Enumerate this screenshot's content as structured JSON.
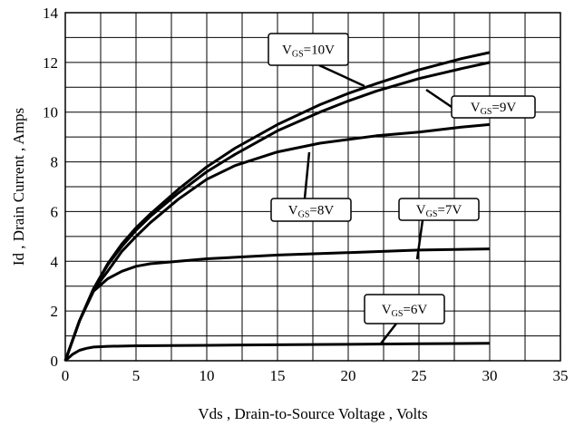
{
  "chart_data": {
    "type": "line",
    "xlabel": "Vds , Drain-to-Source Voltage , Volts",
    "ylabel": "Id , Drain Current , Amps",
    "xlim": [
      0,
      35
    ],
    "ylim": [
      0,
      14
    ],
    "xticks": [
      0,
      5,
      10,
      15,
      20,
      25,
      30,
      35
    ],
    "yticks": [
      0,
      2,
      4,
      6,
      8,
      10,
      12,
      14
    ],
    "grid": true,
    "series": [
      {
        "name": "VGS=10V",
        "label_main": "V",
        "label_sub": "GS",
        "label_rest": "=10V",
        "x": [
          0,
          1,
          2,
          3,
          4,
          5,
          6,
          8,
          10,
          12,
          15,
          18,
          20,
          22,
          25,
          28,
          30
        ],
        "y": [
          0,
          1.6,
          2.9,
          3.9,
          4.7,
          5.35,
          5.9,
          6.9,
          7.8,
          8.55,
          9.5,
          10.3,
          10.75,
          11.15,
          11.7,
          12.15,
          12.4
        ]
      },
      {
        "name": "VGS=9V",
        "label_main": "V",
        "label_sub": "GS",
        "label_rest": "=9V",
        "x": [
          0,
          1,
          2,
          3,
          4,
          5,
          6,
          8,
          10,
          12,
          15,
          18,
          20,
          22,
          25,
          28,
          30
        ],
        "y": [
          0,
          1.6,
          2.9,
          3.85,
          4.6,
          5.25,
          5.8,
          6.75,
          7.6,
          8.3,
          9.25,
          10.0,
          10.45,
          10.85,
          11.35,
          11.75,
          12.0
        ]
      },
      {
        "name": "VGS=8V",
        "label_main": "V",
        "label_sub": "GS",
        "label_rest": "=8V",
        "x": [
          0,
          1,
          2,
          3,
          4,
          5,
          6,
          8,
          10,
          12,
          15,
          18,
          20,
          22,
          25,
          28,
          30
        ],
        "y": [
          0,
          1.6,
          2.85,
          3.6,
          4.4,
          5.0,
          5.55,
          6.5,
          7.3,
          7.85,
          8.4,
          8.75,
          8.9,
          9.05,
          9.2,
          9.4,
          9.5
        ]
      },
      {
        "name": "VGS=7V",
        "label_main": "V",
        "label_sub": "GS",
        "label_rest": "=7V",
        "x": [
          0,
          1,
          2,
          3,
          4,
          5,
          6,
          8,
          10,
          15,
          20,
          25,
          30
        ],
        "y": [
          0,
          1.6,
          2.8,
          3.3,
          3.6,
          3.8,
          3.9,
          4.0,
          4.1,
          4.25,
          4.35,
          4.45,
          4.5
        ]
      },
      {
        "name": "VGS=6V",
        "label_main": "V",
        "label_sub": "GS",
        "label_rest": "=6V",
        "x": [
          0,
          0.5,
          1,
          1.5,
          2,
          3,
          5,
          10,
          15,
          20,
          25,
          30
        ],
        "y": [
          0,
          0.25,
          0.42,
          0.5,
          0.55,
          0.58,
          0.6,
          0.62,
          0.64,
          0.66,
          0.68,
          0.7
        ]
      }
    ]
  }
}
